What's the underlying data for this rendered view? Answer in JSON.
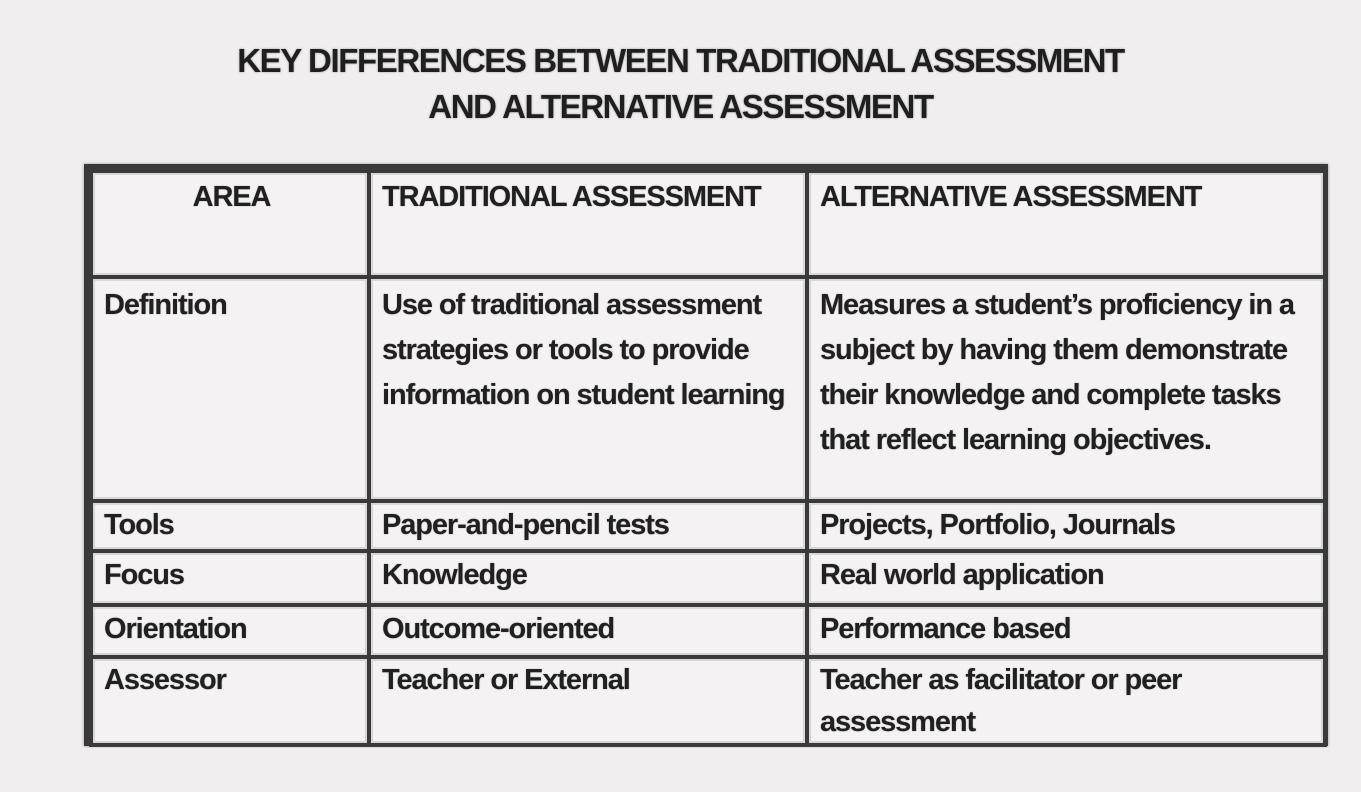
{
  "title": {
    "line1": "KEY DIFFERENCES BETWEEN TRADITIONAL ASSESSMENT",
    "line2": "AND ALTERNATIVE ASSESSMENT"
  },
  "table": {
    "headers": {
      "area": "AREA",
      "traditional": "TRADITIONAL ASSESSMENT",
      "alternative": "ALTERNATIVE ASSESSMENT"
    },
    "rows": [
      {
        "area": "Definition",
        "traditional": "Use of traditional assessment strategies or tools to provide information on student learning",
        "alternative": "Measures a student’s proficiency in a subject by having them demonstrate their knowledge and complete tasks that reflect learning objectives."
      },
      {
        "area": "Tools",
        "traditional": "Paper-and-pencil tests",
        "alternative": "Projects, Portfolio, Journals"
      },
      {
        "area": "Focus",
        "traditional": "Knowledge",
        "alternative": "Real world application"
      },
      {
        "area": "Orientation",
        "traditional": "Outcome-oriented",
        "alternative": "Performance based"
      },
      {
        "area": "Assessor",
        "traditional": "Teacher or External",
        "alternative": "Teacher as facilitator or peer assessment"
      }
    ]
  },
  "colors": {
    "background": "#f1eeef",
    "border": "#3a3a3a",
    "text": "#1e1e1e"
  }
}
